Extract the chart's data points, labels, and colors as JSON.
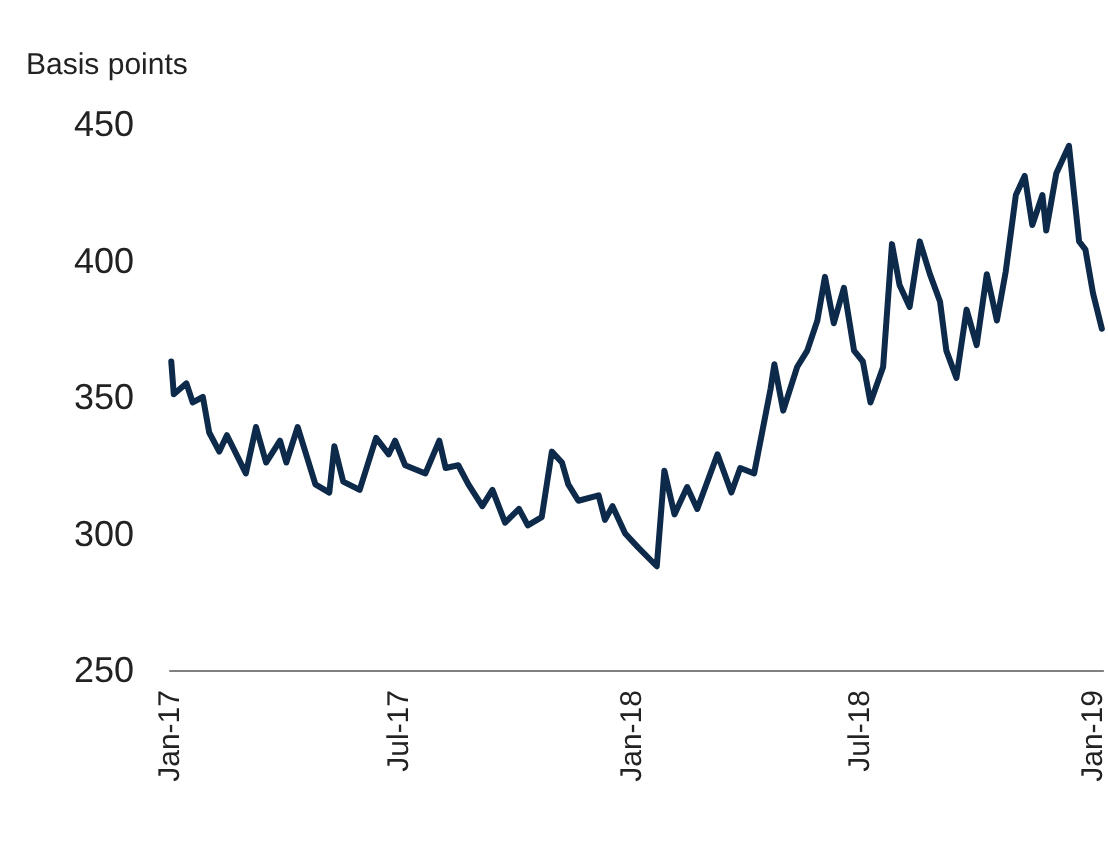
{
  "chart_data": {
    "type": "line",
    "ylabel": "Basis points",
    "x": [
      "2017-01-02",
      "2017-01-04",
      "2017-01-14",
      "2017-01-19",
      "2017-01-27",
      "2017-02-01",
      "2017-02-09",
      "2017-02-15",
      "2017-03-02",
      "2017-03-10",
      "2017-03-18",
      "2017-03-29",
      "2017-04-03",
      "2017-04-12",
      "2017-04-26",
      "2017-05-07",
      "2017-05-11",
      "2017-05-18",
      "2017-05-31",
      "2017-06-13",
      "2017-06-23",
      "2017-06-28",
      "2017-07-06",
      "2017-07-22",
      "2017-08-02",
      "2017-08-07",
      "2017-08-17",
      "2017-08-25",
      "2017-09-05",
      "2017-09-13",
      "2017-09-23",
      "2017-10-04",
      "2017-10-11",
      "2017-10-22",
      "2017-10-30",
      "2017-11-07",
      "2017-11-12",
      "2017-11-20",
      "2017-12-06",
      "2017-12-11",
      "2017-12-17",
      "2017-12-27",
      "2018-01-06",
      "2018-01-21",
      "2018-01-27",
      "2018-02-04",
      "2018-02-14",
      "2018-02-22",
      "2018-03-10",
      "2018-03-21",
      "2018-03-28",
      "2018-04-08",
      "2018-04-21",
      "2018-04-24",
      "2018-05-01",
      "2018-05-12",
      "2018-05-20",
      "2018-05-28",
      "2018-06-03",
      "2018-06-10",
      "2018-06-18",
      "2018-06-26",
      "2018-07-03",
      "2018-07-09",
      "2018-07-19",
      "2018-07-26",
      "2018-08-01",
      "2018-08-09",
      "2018-08-17",
      "2018-08-25",
      "2018-09-02",
      "2018-09-07",
      "2018-09-15",
      "2018-09-23",
      "2018-10-01",
      "2018-10-09",
      "2018-10-17",
      "2018-10-24",
      "2018-11-01",
      "2018-11-08",
      "2018-11-14",
      "2018-11-22",
      "2018-11-25",
      "2018-12-03",
      "2018-12-13",
      "2018-12-21",
      "2018-12-26",
      "2019-01-01",
      "2019-01-08"
    ],
    "series": [
      {
        "color": "#0d2a4a",
        "values": [
          363,
          351,
          355,
          348,
          350,
          337,
          330,
          336,
          322,
          339,
          326,
          334,
          326,
          339,
          318,
          315,
          332,
          319,
          316,
          335,
          329,
          334,
          325,
          322,
          334,
          324,
          325,
          318,
          310,
          316,
          304,
          309,
          303,
          306,
          330,
          326,
          318,
          312,
          314,
          305,
          310,
          300,
          295,
          288,
          323,
          307,
          317,
          309,
          329,
          315,
          324,
          322,
          353,
          362,
          345,
          361,
          367,
          378,
          394,
          377,
          390,
          367,
          363,
          348,
          361,
          406,
          391,
          383,
          407,
          395,
          385,
          367,
          357,
          382,
          369,
          395,
          378,
          396,
          424,
          431,
          413,
          424,
          411,
          432,
          442,
          407,
          404,
          388,
          375
        ]
      }
    ],
    "xlim": [
      "2017-01-01",
      "2019-01-09"
    ],
    "xticks": [
      {
        "value": "2017-01-01",
        "label": "Jan-17"
      },
      {
        "value": "2017-07-01",
        "label": "Jul-17"
      },
      {
        "value": "2018-01-01",
        "label": "Jan-18"
      },
      {
        "value": "2018-07-01",
        "label": "Jul-18"
      },
      {
        "value": "2019-01-01",
        "label": "Jan-19"
      }
    ],
    "ylim": [
      250,
      450
    ],
    "yticks": [
      250,
      300,
      350,
      400,
      450
    ],
    "marker": "none",
    "line_style": "solid"
  }
}
